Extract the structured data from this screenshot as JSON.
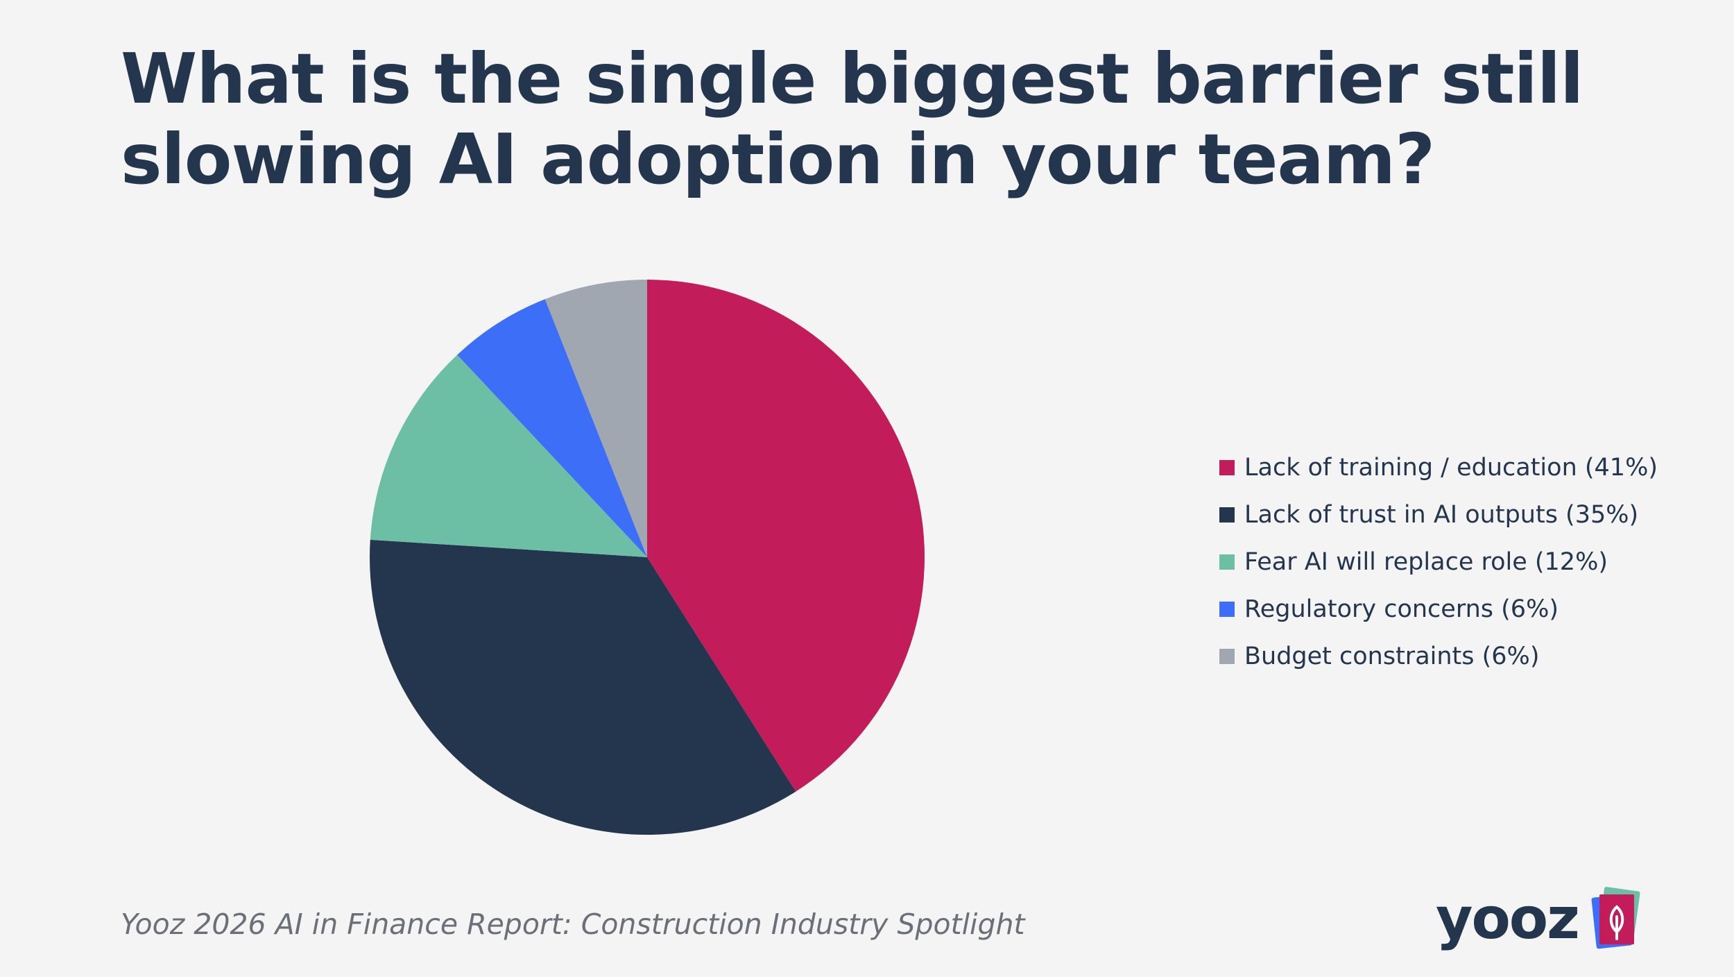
{
  "title_lines": [
    "What is the single biggest barrier still",
    "slowing AI adoption in your team?"
  ],
  "source": "Yooz 2026 AI in Finance Report: Construction Industry Spotlight",
  "logo": {
    "text": "yooz",
    "icon": "yooz-leaf-cards-icon",
    "colors": [
      "#6cbfa4",
      "#3d6ef8",
      "#c21c5b"
    ]
  },
  "chart_data": {
    "type": "pie",
    "title": "What is the single biggest barrier still slowing AI adoption in your team?",
    "start_angle_deg": 0,
    "direction": "clockwise",
    "legend_position": "right",
    "slices": [
      {
        "label": "Lack of training / education",
        "value": 41,
        "legend": "Lack of training / education (41%)",
        "color": "#c21c5b"
      },
      {
        "label": "Lack of trust in AI outputs",
        "value": 35,
        "legend": "Lack of trust in AI outputs (35%)",
        "color": "#24364d"
      },
      {
        "label": "Fear AI will replace role",
        "value": 12,
        "legend": "Fear AI will replace role (12%)",
        "color": "#6cbfa4"
      },
      {
        "label": "Regulatory concerns",
        "value": 6,
        "legend": "Regulatory concerns (6%)",
        "color": "#3d6ef8"
      },
      {
        "label": "Budget constraints",
        "value": 6,
        "legend": "Budget constraints (6%)",
        "color": "#a0a7b0"
      }
    ]
  }
}
